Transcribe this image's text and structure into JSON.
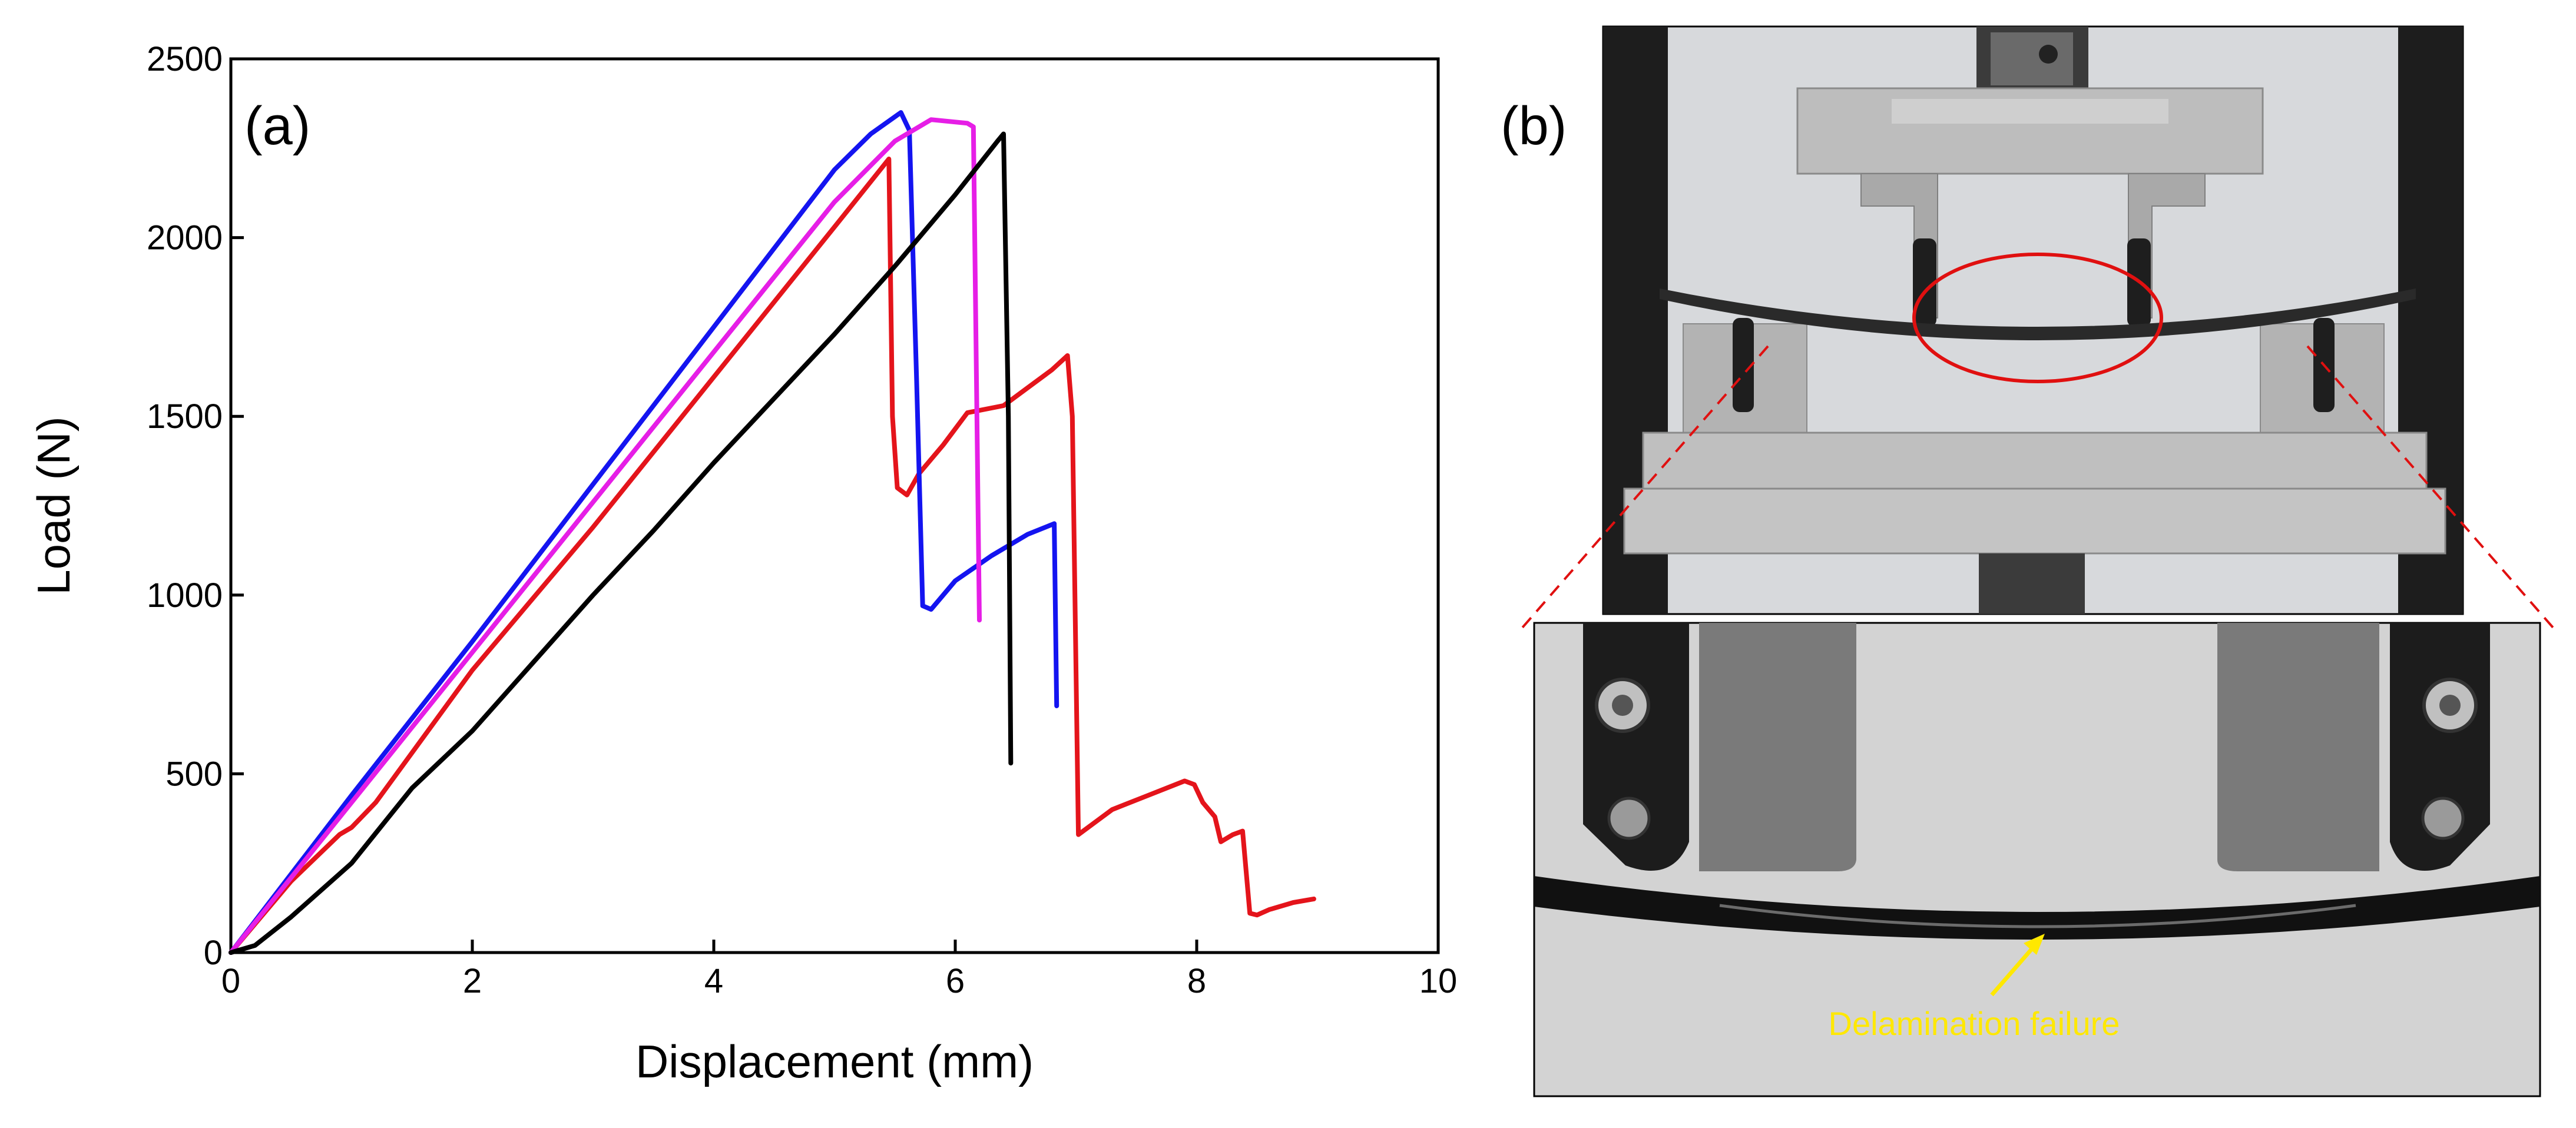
{
  "panel_a": {
    "label": "(a)"
  },
  "panel_b": {
    "label": "(b)",
    "annotation": "Delamination failure"
  },
  "colors": {
    "red": "#e4141b",
    "blue": "#1414f0",
    "magenta": "#e61ee6",
    "black": "#000000",
    "annotation": "#ffe800",
    "highlight": "#e01010"
  },
  "chart_data": {
    "type": "line",
    "title": "",
    "xlabel": "Displacement (mm)",
    "ylabel": "Load (N)",
    "xlim": [
      0,
      10
    ],
    "ylim": [
      0,
      2500
    ],
    "xticks": [
      0,
      2,
      4,
      6,
      8,
      10
    ],
    "yticks": [
      0,
      500,
      1000,
      1500,
      2000,
      2500
    ],
    "legend": "none",
    "grid": false,
    "series": [
      {
        "color": "#e4141b",
        "x": [
          0,
          0.5,
          0.9,
          1.0,
          1.2,
          2,
          3,
          4,
          5,
          5.45,
          5.48,
          5.52,
          5.6,
          5.7,
          5.9,
          6.1,
          6.4,
          6.6,
          6.8,
          6.93,
          6.97,
          7.02,
          7.1,
          7.3,
          7.6,
          7.9,
          7.98,
          8.05,
          8.15,
          8.2,
          8.3,
          8.38,
          8.44,
          8.5,
          8.6,
          8.8,
          8.97
        ],
        "y": [
          0,
          200,
          330,
          350,
          420,
          790,
          1190,
          1610,
          2030,
          2220,
          1500,
          1300,
          1280,
          1340,
          1420,
          1510,
          1530,
          1580,
          1630,
          1670,
          1500,
          330,
          350,
          400,
          440,
          480,
          470,
          420,
          380,
          310,
          330,
          340,
          110,
          105,
          120,
          140,
          150
        ]
      },
      {
        "color": "#1414f0",
        "x": [
          0,
          1,
          2,
          3,
          4,
          5,
          5.3,
          5.55,
          5.62,
          5.68,
          5.73,
          5.8,
          6.0,
          6.3,
          6.6,
          6.82,
          6.84
        ],
        "y": [
          0,
          440,
          870,
          1310,
          1750,
          2190,
          2290,
          2350,
          2300,
          1600,
          970,
          960,
          1040,
          1110,
          1170,
          1200,
          690
        ]
      },
      {
        "color": "#e61ee6",
        "x": [
          0,
          1,
          2,
          3,
          4,
          5,
          5.5,
          5.8,
          6.1,
          6.15,
          6.2
        ],
        "y": [
          0,
          420,
          840,
          1260,
          1680,
          2100,
          2270,
          2330,
          2320,
          2310,
          930
        ]
      },
      {
        "color": "#000000",
        "x": [
          0,
          0.2,
          0.5,
          1,
          1.5,
          2,
          2.5,
          3,
          3.5,
          4,
          4.5,
          5,
          5.5,
          6,
          6.35,
          6.4,
          6.44,
          6.46
        ],
        "y": [
          0,
          20,
          100,
          250,
          460,
          620,
          810,
          1000,
          1180,
          1370,
          1550,
          1730,
          1920,
          2120,
          2270,
          2290,
          1500,
          530
        ]
      }
    ]
  }
}
